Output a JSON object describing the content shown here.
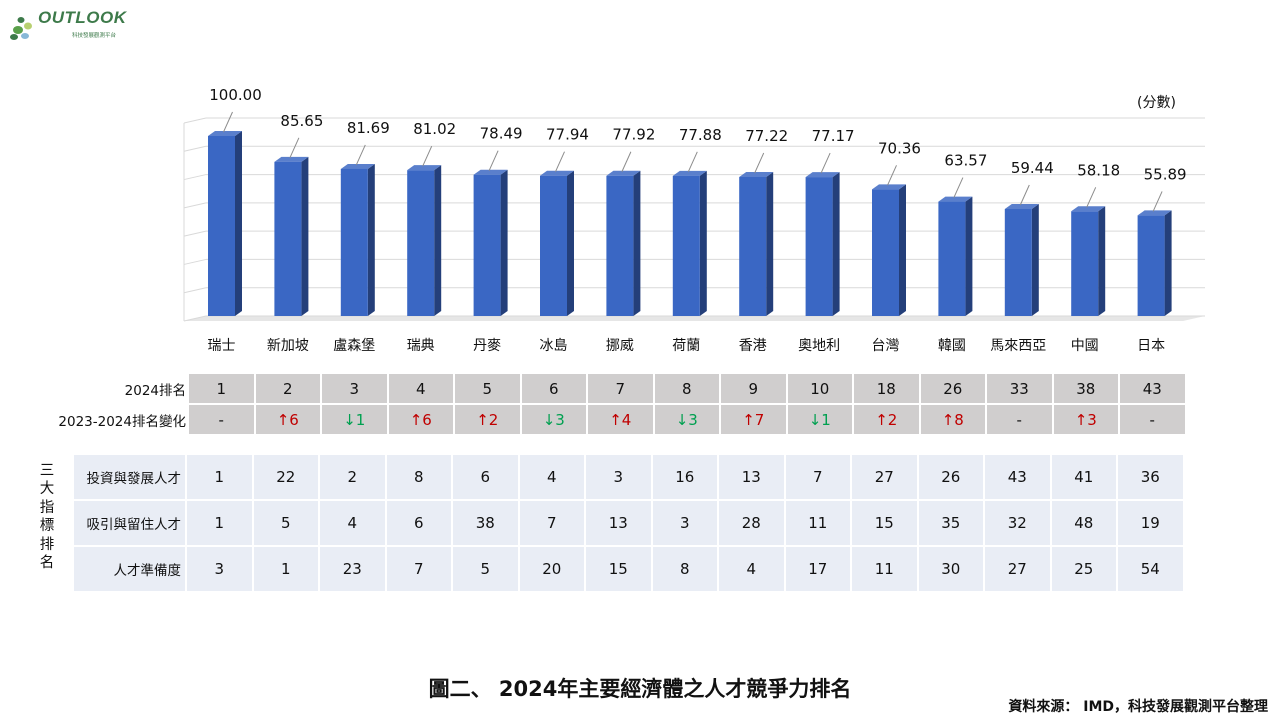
{
  "brand": {
    "logo_text": "OUTLOOK",
    "logo_subtitle": "科技發展觀測平台"
  },
  "chart_data": {
    "type": "bar",
    "unit_label": "(分數)",
    "categories": [
      "瑞士",
      "新加坡",
      "盧森堡",
      "瑞典",
      "丹麥",
      "冰島",
      "挪威",
      "荷蘭",
      "香港",
      "奧地利",
      "台灣",
      "韓國",
      "馬來西亞",
      "中國",
      "日本"
    ],
    "values": [
      100.0,
      85.65,
      81.69,
      81.02,
      78.49,
      77.94,
      77.92,
      77.88,
      77.22,
      77.17,
      70.36,
      63.57,
      59.44,
      58.18,
      55.89
    ],
    "value_labels": [
      "100.00",
      "85.65",
      "81.69",
      "81.02",
      "78.49",
      "77.94",
      "77.92",
      "77.88",
      "77.22",
      "77.17",
      "70.36",
      "63.57",
      "59.44",
      "58.18",
      "55.89"
    ],
    "ylim": [
      0,
      110
    ],
    "grid": true,
    "bar_color": "#3a67c4"
  },
  "rank_table": {
    "rank_label": "2024排名",
    "ranks": [
      "1",
      "2",
      "3",
      "4",
      "5",
      "6",
      "7",
      "8",
      "9",
      "10",
      "18",
      "26",
      "33",
      "38",
      "43"
    ],
    "change_label": "2023-2024排名變化",
    "changes": [
      {
        "text": "-",
        "dir": "none"
      },
      {
        "text": "↑6",
        "dir": "up"
      },
      {
        "text": "↓1",
        "dir": "down"
      },
      {
        "text": "↑6",
        "dir": "up"
      },
      {
        "text": "↑2",
        "dir": "up"
      },
      {
        "text": "↓3",
        "dir": "down"
      },
      {
        "text": "↑4",
        "dir": "up"
      },
      {
        "text": "↓3",
        "dir": "down"
      },
      {
        "text": "↑7",
        "dir": "up"
      },
      {
        "text": "↓1",
        "dir": "down"
      },
      {
        "text": "↑2",
        "dir": "up"
      },
      {
        "text": "↑8",
        "dir": "up"
      },
      {
        "text": "-",
        "dir": "none"
      },
      {
        "text": "↑3",
        "dir": "up"
      },
      {
        "text": "-",
        "dir": "none"
      }
    ]
  },
  "indicator_table": {
    "group_label": "三大指標排名",
    "rows": [
      {
        "label": "投資與發展人才",
        "values": [
          "1",
          "22",
          "2",
          "8",
          "6",
          "4",
          "3",
          "16",
          "13",
          "7",
          "27",
          "26",
          "43",
          "41",
          "36"
        ]
      },
      {
        "label": "吸引與留住人才",
        "values": [
          "1",
          "5",
          "4",
          "6",
          "38",
          "7",
          "13",
          "3",
          "28",
          "11",
          "15",
          "35",
          "32",
          "48",
          "19"
        ]
      },
      {
        "label": "人才準備度",
        "values": [
          "3",
          "1",
          "23",
          "7",
          "5",
          "20",
          "15",
          "8",
          "4",
          "17",
          "11",
          "30",
          "27",
          "25",
          "54"
        ]
      }
    ]
  },
  "caption": "圖二、 2024年主要經濟體之人才競爭力排名",
  "source": "資料來源： IMD，科技發展觀測平台整理",
  "colors": {
    "up": "#c00000",
    "down": "#00a050",
    "rank_bg": "#d0cece",
    "indicator_bg": "#e9edf5"
  }
}
